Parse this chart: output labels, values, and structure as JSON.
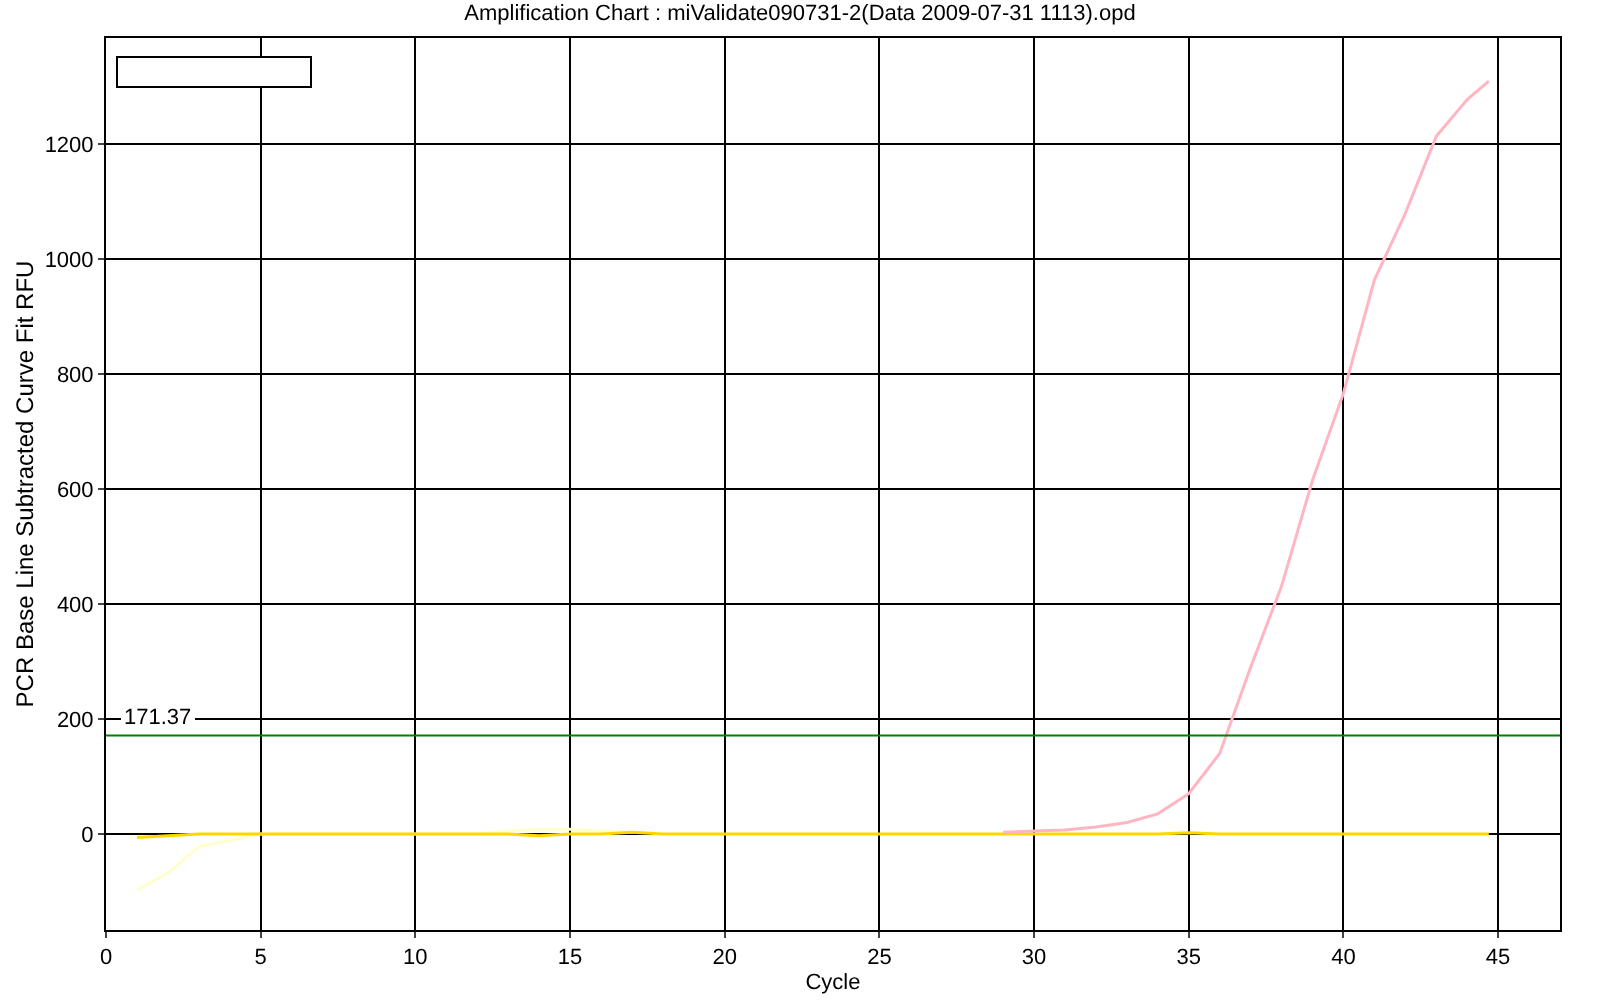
{
  "chart_data": {
    "type": "line",
    "title": "Amplification Chart : miValidate090731-2(Data 2009-07-31 1113).opd",
    "xlabel": "Cycle",
    "ylabel": "PCR Base Line Subtracted Curve Fit RFU",
    "x": [
      1,
      2,
      3,
      4,
      5,
      6,
      7,
      8,
      9,
      10,
      11,
      12,
      13,
      14,
      15,
      16,
      17,
      18,
      19,
      20,
      21,
      22,
      23,
      24,
      25,
      26,
      27,
      28,
      29,
      30,
      31,
      32,
      33,
      34,
      35,
      36,
      37,
      38,
      39,
      40,
      41,
      42,
      43,
      44,
      44.7
    ],
    "series": [
      {
        "color": "#ffffcc",
        "values": [
          -97,
          -68,
          -22,
          -12,
          0,
          0,
          0,
          0,
          0,
          0,
          0,
          0,
          5,
          8,
          8,
          5,
          3,
          null,
          null,
          null,
          null,
          null,
          null,
          null,
          null,
          null,
          null,
          null,
          null,
          null,
          null,
          null,
          null,
          null,
          null,
          null,
          null,
          null,
          null,
          null,
          null,
          null,
          null,
          null,
          null
        ]
      },
      {
        "color": "#ffd700",
        "values": [
          -6,
          -3,
          0,
          0,
          0,
          0,
          0,
          0,
          0,
          0,
          0,
          0,
          0,
          -3,
          0,
          0,
          3,
          0,
          0,
          0,
          0,
          0,
          0,
          0,
          0,
          0,
          0,
          0,
          0,
          0,
          0,
          0,
          0,
          0,
          2,
          0,
          0,
          0,
          0,
          0,
          0,
          0,
          0,
          0,
          0
        ]
      },
      {
        "color": "#ffb6c1",
        "values": [
          null,
          null,
          null,
          null,
          null,
          null,
          null,
          null,
          null,
          null,
          null,
          null,
          null,
          null,
          null,
          null,
          null,
          null,
          null,
          null,
          null,
          null,
          null,
          null,
          null,
          null,
          null,
          null,
          3,
          5,
          7,
          12,
          20,
          35,
          70,
          140,
          290,
          431,
          615,
          766,
          963,
          1079,
          1213,
          1277,
          1309
        ]
      }
    ],
    "xlim": [
      0,
      47
    ],
    "ylim": [
      -167,
      1384
    ],
    "xticks": [
      0,
      5,
      10,
      15,
      20,
      25,
      30,
      35,
      40,
      45
    ],
    "yticks": [
      0,
      200,
      400,
      600,
      800,
      1000,
      1200
    ],
    "grid": true,
    "line_style": "solid",
    "marker": "none",
    "ref_lines": [
      {
        "axis": "y",
        "value": 171.37,
        "label": "171.37",
        "color": "#008000"
      }
    ]
  }
}
